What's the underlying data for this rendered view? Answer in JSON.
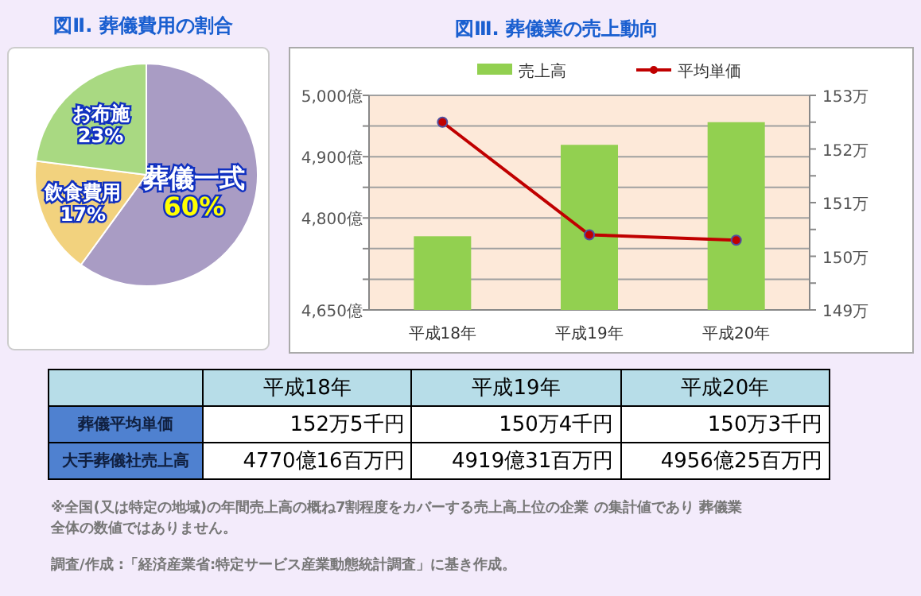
{
  "chart_data": [
    {
      "type": "pie",
      "title": "図Ⅱ. 葬儀費用の割合",
      "categories": [
        "葬儀一式",
        "飲食費用",
        "お布施"
      ],
      "values": [
        60,
        17,
        23
      ],
      "colors": [
        "#a99cc4",
        "#f2d27e",
        "#a9d982"
      ],
      "value_labels": [
        "60%",
        "17%",
        "23%"
      ]
    },
    {
      "type": "bar",
      "title": "図Ⅲ. 葬儀業の売上動向",
      "categories": [
        "平成18年",
        "平成19年",
        "平成20年"
      ],
      "legend": "top",
      "grid": "y",
      "ylim": [
        4650,
        5000
      ],
      "yticks": [
        {
          "value": 4650,
          "label": "4,650億"
        },
        {
          "value": 4700,
          "label": null
        },
        {
          "value": 4750,
          "label": null
        },
        {
          "value": 4800,
          "label": "4,800億"
        },
        {
          "value": 4850,
          "label": null
        },
        {
          "value": 4900,
          "label": "4,900億"
        },
        {
          "value": 4950,
          "label": null
        },
        {
          "value": 5000,
          "label": "5,000億"
        }
      ],
      "y2lim": [
        149,
        153
      ],
      "y2ticks": [
        {
          "value": 149,
          "label": "149万"
        },
        {
          "value": 149.5,
          "label": null
        },
        {
          "value": 150,
          "label": "150万"
        },
        {
          "value": 150.5,
          "label": null
        },
        {
          "value": 151,
          "label": "151万"
        },
        {
          "value": 151.5,
          "label": null
        },
        {
          "value": 152,
          "label": "152万"
        },
        {
          "value": 152.5,
          "label": null
        },
        {
          "value": 153,
          "label": "153万"
        }
      ],
      "series": [
        {
          "name": "売上高",
          "type": "bar",
          "color": "#92d050",
          "values": [
            4770.16,
            4919.31,
            4956.25
          ]
        },
        {
          "name": "平均単価",
          "type": "line",
          "axis": "y2",
          "color": "#c00000",
          "marker": "circle",
          "values": [
            152.5,
            150.4,
            150.3
          ]
        }
      ],
      "annotations": [
        "葬儀平均単価",
        "152万5千円",
        "150万4千円",
        "150万3千円",
        "大手葬儀社売上高",
        "4770億16百万円",
        "4919億31百万円",
        "4956億25百万円",
        "※全国(又は特定の地域)の年間売上高の概ね7割程度をカバーする売上高上位の企業 の集計値であり 葬儀業全体の数値ではありません。",
        "調査/作成 :「経済産業省:特定サービス産業動態統計調査」に基き作成。"
      ]
    }
  ]
}
